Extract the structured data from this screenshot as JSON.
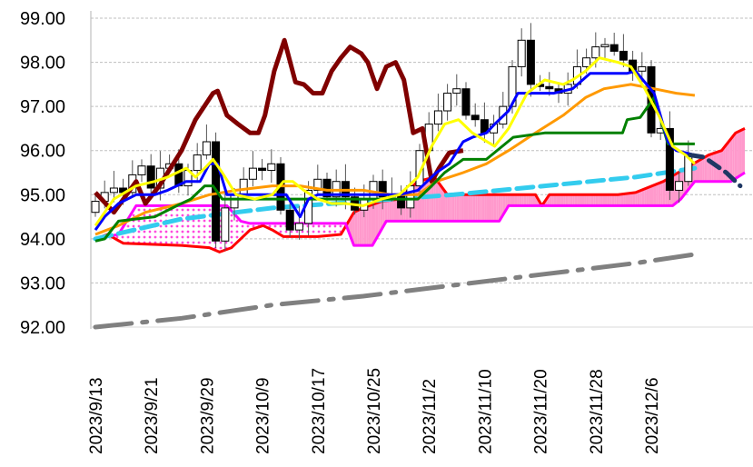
{
  "chart_data": {
    "type": "candlestick",
    "title": "",
    "xlabel": "",
    "ylabel": "",
    "ylim": [
      92,
      99
    ],
    "grid": true,
    "yticks": [
      "92.00",
      "93.00",
      "94.00",
      "95.00",
      "96.00",
      "97.00",
      "98.00",
      "99.00"
    ],
    "xtick_labels": [
      {
        "bar": 0,
        "label": "2023/9/13"
      },
      {
        "bar": 6,
        "label": "2023/9/21"
      },
      {
        "bar": 12,
        "label": "2023/9/29"
      },
      {
        "bar": 18,
        "label": "2023/10/9"
      },
      {
        "bar": 24,
        "label": "2023/10/17"
      },
      {
        "bar": 30,
        "label": "2023/10/25"
      },
      {
        "bar": 36,
        "label": "2023/11/2"
      },
      {
        "bar": 42,
        "label": "2023/11/10"
      },
      {
        "bar": 48,
        "label": "2023/11/20"
      },
      {
        "bar": 54,
        "label": "2023/11/28"
      },
      {
        "bar": 60,
        "label": "2023/12/6"
      }
    ],
    "candles_close": [
      94.85,
      95.05,
      95.15,
      95.05,
      95.45,
      95.65,
      95.15,
      95.6,
      95.7,
      95.2,
      95.55,
      95.9,
      96.2,
      93.95,
      94.7,
      95.0,
      95.35,
      95.6,
      95.55,
      95.7,
      94.65,
      94.2,
      94.35,
      95.1,
      95.35,
      94.95,
      95.3,
      94.95,
      94.65,
      94.9,
      95.3,
      94.95,
      95.0,
      94.7,
      95.2,
      96.0,
      96.6,
      96.9,
      97.3,
      97.4,
      96.8,
      96.7,
      96.4,
      96.6,
      97.0,
      97.9,
      98.5,
      97.5,
      97.45,
      97.4,
      97.3,
      97.5,
      97.9,
      98.1,
      98.35,
      98.4,
      98.25,
      98.05,
      97.8,
      97.9,
      96.4,
      96.5,
      95.1,
      95.3,
      95.9
    ],
    "first_open": 94.6,
    "series": [
      {
        "name": "chikou",
        "color": "#800000",
        "width": 5,
        "dash": "",
        "points": [
          [
            0,
            95.05
          ],
          [
            2,
            94.6
          ],
          [
            4.4,
            95.3
          ],
          [
            5.4,
            94.8
          ],
          [
            6.9,
            95.2
          ],
          [
            9.3,
            96.0
          ],
          [
            10.8,
            96.7
          ],
          [
            12.7,
            97.3
          ],
          [
            13.2,
            97.35
          ],
          [
            14.2,
            96.8
          ],
          [
            15.4,
            96.6
          ],
          [
            16.7,
            96.4
          ],
          [
            17.6,
            96.4
          ],
          [
            18.3,
            96.8
          ],
          [
            19.3,
            97.8
          ],
          [
            20.4,
            98.5
          ],
          [
            21.6,
            97.55
          ],
          [
            22.5,
            97.5
          ],
          [
            23.5,
            97.3
          ],
          [
            24.5,
            97.3
          ],
          [
            25.5,
            97.8
          ],
          [
            26.5,
            98.1
          ],
          [
            27.5,
            98.35
          ],
          [
            28.7,
            98.2
          ],
          [
            29.4,
            98.0
          ],
          [
            30.4,
            97.4
          ],
          [
            31.4,
            97.9
          ],
          [
            32.4,
            98.0
          ],
          [
            33.3,
            97.6
          ],
          [
            34.3,
            96.4
          ],
          [
            35.3,
            96.5
          ],
          [
            36.3,
            95.3
          ],
          [
            37.1,
            95.6
          ],
          [
            38.2,
            95.95
          ],
          [
            39.7,
            96.0
          ]
        ]
      },
      {
        "name": "senkou-span-a",
        "color": "#ff0000",
        "width": 3,
        "dash": "",
        "points": [
          [
            0,
            94.0
          ],
          [
            1.3,
            94.1
          ],
          [
            3,
            93.9
          ],
          [
            9.3,
            93.85
          ],
          [
            12.3,
            93.8
          ],
          [
            13.4,
            93.7
          ],
          [
            14.7,
            93.8
          ],
          [
            16.7,
            94.2
          ],
          [
            18.1,
            94.3
          ],
          [
            19.1,
            94.2
          ],
          [
            20.3,
            94.05
          ],
          [
            24.0,
            94.05
          ],
          [
            26.5,
            94.1
          ],
          [
            27.9,
            94.6
          ],
          [
            28.9,
            94.7
          ],
          [
            30.9,
            94.85
          ],
          [
            32.8,
            94.9
          ],
          [
            34.8,
            95.3
          ],
          [
            36.6,
            95.4
          ],
          [
            38.0,
            95.0
          ],
          [
            47.5,
            95.0
          ],
          [
            48.2,
            94.75
          ],
          [
            49.0,
            95.0
          ],
          [
            56.4,
            95.0
          ],
          [
            58.3,
            95.05
          ],
          [
            61.3,
            95.3
          ],
          [
            63.7,
            95.6
          ],
          [
            66.2,
            95.9
          ],
          [
            67.6,
            96.0
          ],
          [
            69.1,
            96.4
          ],
          [
            70.1,
            96.5
          ]
        ]
      },
      {
        "name": "senkou-span-b",
        "color": "#ff00ff",
        "width": 3,
        "dash": "",
        "points": [
          [
            0,
            94.0
          ],
          [
            2.5,
            94.1
          ],
          [
            4.4,
            94.75
          ],
          [
            14.2,
            94.75
          ],
          [
            15.7,
            94.4
          ],
          [
            16.7,
            94.35
          ],
          [
            27.0,
            94.35
          ],
          [
            27.9,
            93.85
          ],
          [
            29.9,
            93.85
          ],
          [
            31.4,
            94.4
          ],
          [
            36.8,
            94.4
          ],
          [
            43.6,
            94.4
          ],
          [
            44.6,
            94.75
          ],
          [
            62.3,
            94.75
          ],
          [
            63.2,
            94.9
          ],
          [
            64.7,
            95.3
          ],
          [
            68.6,
            95.3
          ],
          [
            70.1,
            95.5
          ]
        ]
      },
      {
        "name": "trend-ma-long",
        "color": "#808080",
        "width": 5,
        "dash": "40 12 5 12",
        "points": [
          [
            0,
            92.0
          ],
          [
            9.3,
            92.2
          ],
          [
            19.1,
            92.5
          ],
          [
            28.9,
            92.7
          ],
          [
            38.7,
            92.95
          ],
          [
            48.5,
            93.2
          ],
          [
            58.3,
            93.45
          ],
          [
            64.7,
            93.65
          ]
        ]
      },
      {
        "name": "ma-mid",
        "color": "#33ccee",
        "width": 5,
        "dash": "18 8",
        "points": [
          [
            0,
            94.0
          ],
          [
            9.3,
            94.45
          ],
          [
            19.1,
            94.7
          ],
          [
            28.9,
            94.85
          ],
          [
            38.7,
            95.0
          ],
          [
            48.5,
            95.2
          ],
          [
            58.3,
            95.4
          ],
          [
            64.7,
            95.6
          ]
        ]
      },
      {
        "name": "ma-25",
        "color": "#ff9900",
        "width": 3,
        "dash": "",
        "points": [
          [
            0,
            94.1
          ],
          [
            2.5,
            94.3
          ],
          [
            5.4,
            94.6
          ],
          [
            9.3,
            94.8
          ],
          [
            12.3,
            95.0
          ],
          [
            15.2,
            95.1
          ],
          [
            19.1,
            95.2
          ],
          [
            22.1,
            95.2
          ],
          [
            25.0,
            95.1
          ],
          [
            28.9,
            95.1
          ],
          [
            31.9,
            95.0
          ],
          [
            34.8,
            95.0
          ],
          [
            36.8,
            95.3
          ],
          [
            39.7,
            95.5
          ],
          [
            42.2,
            95.7
          ],
          [
            44.6,
            96.0
          ],
          [
            47.5,
            96.4
          ],
          [
            50.5,
            96.8
          ],
          [
            52.9,
            97.2
          ],
          [
            54.9,
            97.4
          ],
          [
            57.8,
            97.5
          ],
          [
            60.3,
            97.4
          ],
          [
            62.7,
            97.3
          ],
          [
            64.7,
            97.25
          ]
        ]
      },
      {
        "name": "kijun",
        "color": "#008000",
        "width": 3,
        "dash": "",
        "points": [
          [
            0,
            93.95
          ],
          [
            1,
            94.0
          ],
          [
            2.5,
            94.4
          ],
          [
            4.4,
            94.45
          ],
          [
            6.4,
            94.5
          ],
          [
            8.8,
            94.75
          ],
          [
            10.3,
            94.9
          ],
          [
            11.8,
            95.2
          ],
          [
            12.7,
            95.2
          ],
          [
            13.7,
            94.9
          ],
          [
            19.1,
            94.9
          ],
          [
            34.8,
            94.9
          ],
          [
            36.3,
            95.2
          ],
          [
            37.7,
            95.5
          ],
          [
            39.7,
            95.8
          ],
          [
            42.2,
            95.8
          ],
          [
            45.1,
            96.3
          ],
          [
            48.5,
            96.4
          ],
          [
            56.9,
            96.4
          ],
          [
            57.4,
            96.7
          ],
          [
            58.8,
            96.75
          ],
          [
            60.3,
            97.2
          ],
          [
            61.8,
            96.15
          ],
          [
            64.7,
            96.15
          ]
        ]
      },
      {
        "name": "tenkan",
        "color": "#0000ff",
        "width": 3,
        "dash": "",
        "points": [
          [
            0,
            94.2
          ],
          [
            1,
            94.5
          ],
          [
            2.5,
            94.8
          ],
          [
            4.4,
            95.0
          ],
          [
            6.4,
            95.0
          ],
          [
            7.8,
            95.1
          ],
          [
            9.8,
            95.3
          ],
          [
            11.3,
            95.3
          ],
          [
            12.3,
            95.7
          ],
          [
            13.2,
            95.7
          ],
          [
            14.2,
            95.0
          ],
          [
            19.1,
            95.0
          ],
          [
            20.6,
            95.0
          ],
          [
            22.1,
            94.5
          ],
          [
            23.0,
            94.9
          ],
          [
            24.0,
            95.0
          ],
          [
            30.9,
            95.0
          ],
          [
            32.8,
            95.0
          ],
          [
            34.8,
            95.1
          ],
          [
            36.8,
            95.5
          ],
          [
            38.2,
            95.7
          ],
          [
            39.7,
            96.2
          ],
          [
            40.7,
            96.3
          ],
          [
            42.2,
            96.4
          ],
          [
            43.1,
            96.6
          ],
          [
            44.6,
            96.9
          ],
          [
            45.6,
            97.3
          ],
          [
            49.5,
            97.3
          ],
          [
            51.5,
            97.4
          ],
          [
            53.4,
            97.75
          ],
          [
            57.4,
            97.75
          ],
          [
            58.3,
            97.8
          ],
          [
            60.3,
            97.3
          ],
          [
            61.8,
            96.2
          ],
          [
            62.7,
            96.0
          ],
          [
            64.7,
            95.9
          ]
        ]
      },
      {
        "name": "ma-5",
        "color": "#ffff00",
        "width": 3,
        "dash": "",
        "points": [
          [
            0,
            94.3
          ],
          [
            2,
            94.9
          ],
          [
            4.4,
            95.2
          ],
          [
            6.4,
            95.3
          ],
          [
            7.8,
            95.4
          ],
          [
            9.8,
            95.6
          ],
          [
            10.8,
            95.4
          ],
          [
            11.8,
            95.6
          ],
          [
            12.7,
            95.8
          ],
          [
            13.7,
            95.5
          ],
          [
            15.2,
            95.0
          ],
          [
            17.2,
            94.9
          ],
          [
            19.1,
            95.0
          ],
          [
            20.3,
            95.3
          ],
          [
            21.3,
            95.3
          ],
          [
            22.5,
            95.1
          ],
          [
            24.0,
            94.9
          ],
          [
            25.5,
            94.8
          ],
          [
            27.0,
            94.8
          ],
          [
            28.9,
            94.75
          ],
          [
            30.9,
            94.9
          ],
          [
            32.8,
            95.0
          ],
          [
            34.8,
            95.4
          ],
          [
            36.3,
            96.1
          ],
          [
            37.7,
            96.6
          ],
          [
            39.2,
            96.7
          ],
          [
            40.7,
            96.4
          ],
          [
            43.1,
            96.1
          ],
          [
            44.6,
            96.5
          ],
          [
            46.6,
            97.3
          ],
          [
            48.5,
            97.6
          ],
          [
            50.5,
            97.5
          ],
          [
            51.5,
            97.6
          ],
          [
            52.9,
            97.8
          ],
          [
            54.4,
            98.1
          ],
          [
            56.4,
            98.0
          ],
          [
            57.8,
            97.9
          ],
          [
            59.3,
            97.4
          ],
          [
            60.8,
            96.8
          ],
          [
            62.3,
            96.1
          ],
          [
            63.7,
            95.9
          ],
          [
            64.7,
            95.7
          ]
        ]
      },
      {
        "name": "projection",
        "color": "#1f3864",
        "width": 5,
        "dash": "14 8",
        "points": [
          [
            64.2,
            95.9
          ],
          [
            65.7,
            95.85
          ],
          [
            68.1,
            95.5
          ],
          [
            69.6,
            95.2
          ]
        ]
      }
    ]
  }
}
